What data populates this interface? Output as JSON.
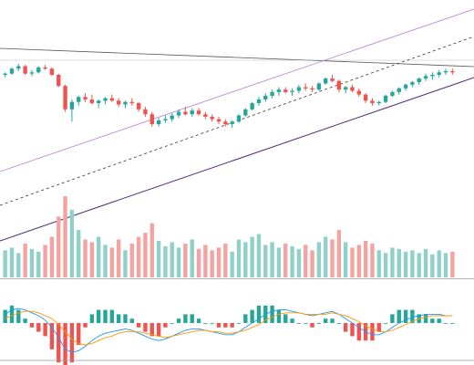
{
  "chart_data": [
    {
      "type": "candlestick",
      "panel": "price",
      "title": "",
      "xlabel": "",
      "ylabel": "",
      "grid": false,
      "legend": "none",
      "ylim": [
        0,
        100
      ],
      "candles": [
        [
          80,
          82,
          78,
          81
        ],
        [
          81,
          86,
          80,
          85
        ],
        [
          85,
          89,
          83,
          87
        ],
        [
          87,
          88,
          80,
          81
        ],
        [
          81,
          84,
          79,
          82
        ],
        [
          82,
          87,
          81,
          86
        ],
        [
          86,
          88,
          84,
          85
        ],
        [
          85,
          86,
          79,
          80
        ],
        [
          80,
          81,
          70,
          71
        ],
        [
          71,
          72,
          50,
          52
        ],
        [
          52,
          60,
          42,
          58
        ],
        [
          58,
          63,
          55,
          62
        ],
        [
          62,
          65,
          58,
          60
        ],
        [
          60,
          64,
          56,
          57
        ],
        [
          57,
          60,
          53,
          59
        ],
        [
          59,
          62,
          56,
          61
        ],
        [
          61,
          64,
          58,
          59
        ],
        [
          59,
          61,
          54,
          56
        ],
        [
          56,
          59,
          53,
          58
        ],
        [
          58,
          61,
          55,
          57
        ],
        [
          57,
          58,
          50,
          52
        ],
        [
          52,
          54,
          46,
          48
        ],
        [
          48,
          50,
          38,
          40
        ],
        [
          40,
          45,
          38,
          43
        ],
        [
          43,
          47,
          41,
          44
        ],
        [
          44,
          49,
          42,
          47
        ],
        [
          47,
          52,
          45,
          50
        ],
        [
          50,
          54,
          47,
          48
        ],
        [
          48,
          53,
          46,
          51
        ],
        [
          51,
          53,
          47,
          48
        ],
        [
          48,
          50,
          44,
          46
        ],
        [
          46,
          48,
          42,
          44
        ],
        [
          44,
          46,
          40,
          42
        ],
        [
          42,
          44,
          38,
          40
        ],
        [
          40,
          43,
          37,
          42
        ],
        [
          42,
          48,
          41,
          47
        ],
        [
          47,
          53,
          46,
          52
        ],
        [
          52,
          58,
          51,
          57
        ],
        [
          57,
          62,
          55,
          60
        ],
        [
          60,
          65,
          58,
          63
        ],
        [
          63,
          68,
          61,
          66
        ],
        [
          66,
          70,
          63,
          68
        ],
        [
          68,
          70,
          65,
          66
        ],
        [
          66,
          69,
          63,
          67
        ],
        [
          67,
          72,
          65,
          70
        ],
        [
          70,
          73,
          67,
          69
        ],
        [
          69,
          71,
          66,
          68
        ],
        [
          68,
          74,
          67,
          73
        ],
        [
          73,
          78,
          72,
          77
        ],
        [
          77,
          80,
          74,
          75
        ],
        [
          75,
          76,
          66,
          68
        ],
        [
          68,
          71,
          65,
          70
        ],
        [
          70,
          72,
          66,
          67
        ],
        [
          67,
          69,
          62,
          64
        ],
        [
          64,
          65,
          57,
          59
        ],
        [
          59,
          61,
          55,
          57
        ],
        [
          57,
          59,
          55,
          58
        ],
        [
          58,
          64,
          57,
          63
        ],
        [
          63,
          67,
          62,
          66
        ],
        [
          66,
          70,
          64,
          69
        ],
        [
          69,
          73,
          67,
          72
        ],
        [
          72,
          75,
          70,
          74
        ],
        [
          74,
          78,
          72,
          77
        ],
        [
          77,
          81,
          75,
          79
        ],
        [
          79,
          82,
          76,
          80
        ],
        [
          80,
          84,
          78,
          82
        ],
        [
          82,
          85,
          80,
          83
        ],
        [
          83,
          85,
          80,
          82
        ]
      ],
      "volume": [
        20,
        22,
        18,
        25,
        21,
        19,
        24,
        30,
        45,
        60,
        50,
        35,
        28,
        26,
        30,
        24,
        22,
        28,
        20,
        25,
        30,
        33,
        40,
        27,
        23,
        26,
        22,
        25,
        28,
        21,
        24,
        20,
        22,
        25,
        19,
        28,
        26,
        30,
        32,
        24,
        26,
        22,
        25,
        23,
        21,
        24,
        20,
        26,
        30,
        28,
        35,
        26,
        22,
        24,
        27,
        25,
        20,
        18,
        22,
        21,
        19,
        20,
        18,
        21,
        17,
        20,
        18,
        19
      ]
    },
    {
      "type": "line",
      "panel": "macd",
      "title": "",
      "legend": "none",
      "x": [
        0,
        1,
        2,
        3,
        4,
        5,
        6,
        7,
        8,
        9,
        10,
        11,
        12,
        13,
        14,
        15,
        16,
        17,
        18,
        19,
        20,
        21,
        22,
        23,
        24,
        25,
        26,
        27,
        28,
        29,
        30,
        31,
        32,
        33,
        34,
        35,
        36,
        37,
        38,
        39,
        40,
        41,
        42,
        43,
        44,
        45,
        46,
        47,
        48,
        49,
        50,
        51,
        52,
        53,
        54,
        55,
        56,
        57,
        58,
        59,
        60,
        61,
        62,
        63,
        64,
        65,
        66,
        67
      ],
      "series": [
        {
          "values": [
            0.6,
            0.9,
            1.0,
            0.9,
            0.7,
            0.5,
            0.2,
            -0.3,
            -1.0,
            -1.8,
            -2.0,
            -1.9,
            -1.6,
            -1.2,
            -0.9,
            -0.7,
            -0.6,
            -0.5,
            -0.4,
            -0.5,
            -0.7,
            -0.9,
            -1.1,
            -1.2,
            -1.1,
            -0.9,
            -0.7,
            -0.5,
            -0.4,
            -0.4,
            -0.5,
            -0.6,
            -0.7,
            -0.8,
            -0.8,
            -0.6,
            -0.3,
            0.0,
            0.3,
            0.6,
            0.8,
            0.9,
            0.9,
            0.8,
            0.7,
            0.6,
            0.5,
            0.6,
            0.7,
            0.8,
            0.6,
            0.3,
            0.0,
            -0.3,
            -0.6,
            -0.8,
            -0.8,
            -0.6,
            -0.3,
            0.0,
            0.2,
            0.4,
            0.5,
            0.6,
            0.6,
            0.6,
            0.5,
            0.5
          ]
        },
        {
          "values": [
            0.3,
            0.5,
            0.7,
            0.8,
            0.8,
            0.7,
            0.5,
            0.3,
            -0.1,
            -0.6,
            -1.1,
            -1.4,
            -1.5,
            -1.4,
            -1.2,
            -1.0,
            -0.9,
            -0.7,
            -0.6,
            -0.6,
            -0.6,
            -0.7,
            -0.8,
            -0.9,
            -1.0,
            -0.9,
            -0.8,
            -0.7,
            -0.6,
            -0.5,
            -0.5,
            -0.6,
            -0.6,
            -0.7,
            -0.7,
            -0.6,
            -0.5,
            -0.3,
            -0.1,
            0.2,
            0.4,
            0.6,
            0.7,
            0.7,
            0.7,
            0.6,
            0.6,
            0.6,
            0.6,
            0.7,
            0.6,
            0.5,
            0.3,
            0.1,
            -0.2,
            -0.4,
            -0.6,
            -0.6,
            -0.5,
            -0.3,
            -0.1,
            0.1,
            0.3,
            0.4,
            0.5,
            0.5,
            0.5,
            0.5
          ]
        }
      ],
      "ylim": [
        -2.5,
        2.5
      ]
    }
  ]
}
